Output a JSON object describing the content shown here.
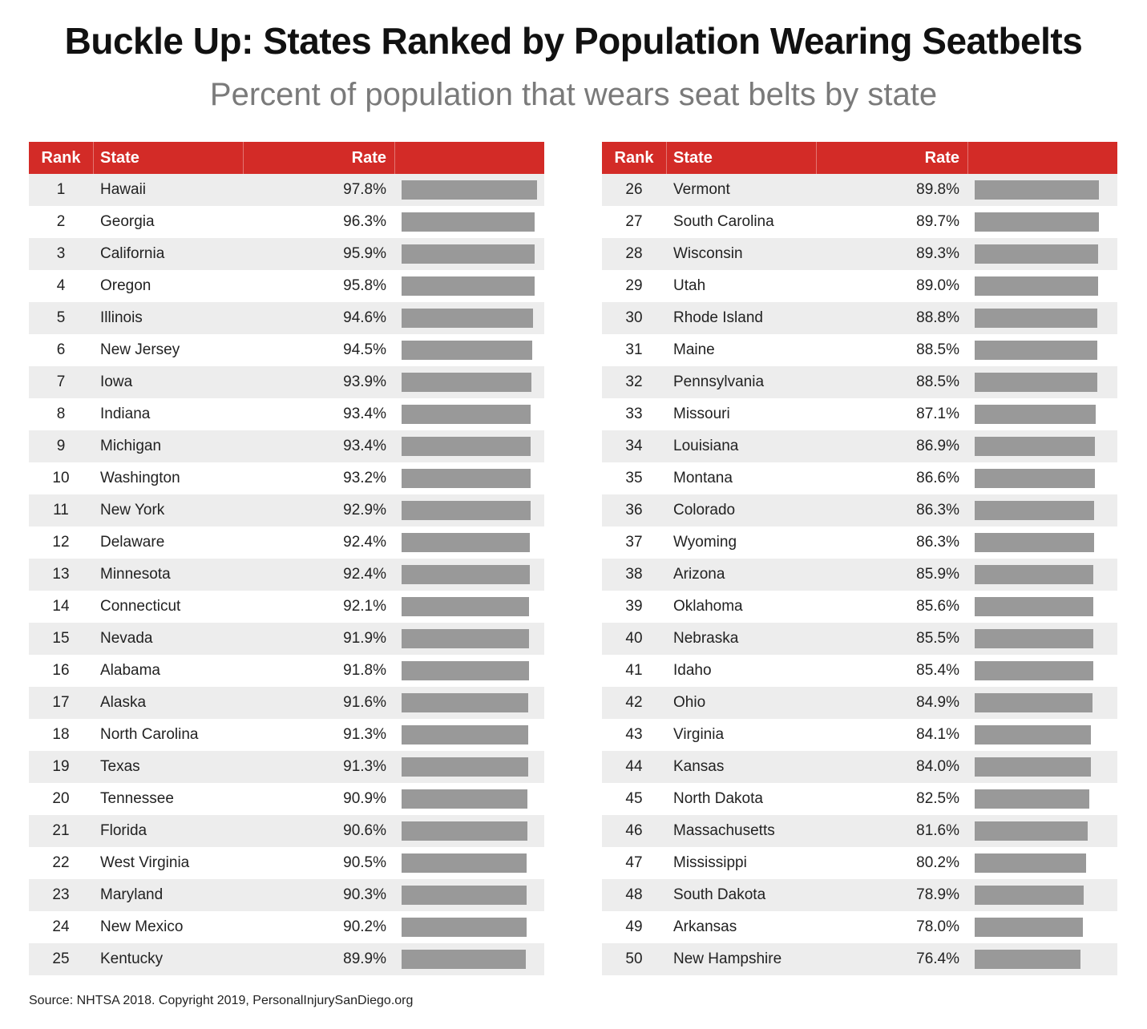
{
  "header": {
    "title": "Buckle Up: States Ranked by Population Wearing Seatbelts",
    "subtitle": "Percent of population that wears seat belts by state"
  },
  "table_header": {
    "rank": "Rank",
    "state": "State",
    "rate": "Rate"
  },
  "footer": {
    "source": "Source: NHTSA 2018. Copyright 2019, PersonalInjurySanDiego.org"
  },
  "colors": {
    "header_bg": "#d32b27",
    "bar": "#999999",
    "row_alt": "#ededed"
  },
  "chart_data": {
    "type": "bar",
    "title": "Buckle Up: States Ranked by Population Wearing Seatbelts",
    "subtitle": "Percent of population that wears seat belts by state",
    "orientation": "horizontal",
    "xlim": [
      0,
      97.8
    ],
    "rows": [
      {
        "rank": "1",
        "state": "Hawaii",
        "rate": "97.8%",
        "value": 97.8
      },
      {
        "rank": "2",
        "state": "Georgia",
        "rate": "96.3%",
        "value": 96.3
      },
      {
        "rank": "3",
        "state": "California",
        "rate": "95.9%",
        "value": 95.9
      },
      {
        "rank": "4",
        "state": "Oregon",
        "rate": "95.8%",
        "value": 95.8
      },
      {
        "rank": "5",
        "state": "Illinois",
        "rate": "94.6%",
        "value": 94.6
      },
      {
        "rank": "6",
        "state": "New Jersey",
        "rate": "94.5%",
        "value": 94.5
      },
      {
        "rank": "7",
        "state": "Iowa",
        "rate": "93.9%",
        "value": 93.9
      },
      {
        "rank": "8",
        "state": "Indiana",
        "rate": "93.4%",
        "value": 93.4
      },
      {
        "rank": "9",
        "state": "Michigan",
        "rate": "93.4%",
        "value": 93.4
      },
      {
        "rank": "10",
        "state": "Washington",
        "rate": "93.2%",
        "value": 93.2
      },
      {
        "rank": "11",
        "state": "New York",
        "rate": "92.9%",
        "value": 92.9
      },
      {
        "rank": "12",
        "state": "Delaware",
        "rate": "92.4%",
        "value": 92.4
      },
      {
        "rank": "13",
        "state": "Minnesota",
        "rate": "92.4%",
        "value": 92.4
      },
      {
        "rank": "14",
        "state": "Connecticut",
        "rate": "92.1%",
        "value": 92.1
      },
      {
        "rank": "15",
        "state": "Nevada",
        "rate": "91.9%",
        "value": 91.9
      },
      {
        "rank": "16",
        "state": "Alabama",
        "rate": "91.8%",
        "value": 91.8
      },
      {
        "rank": "17",
        "state": "Alaska",
        "rate": "91.6%",
        "value": 91.6
      },
      {
        "rank": "18",
        "state": "North Carolina",
        "rate": "91.3%",
        "value": 91.3
      },
      {
        "rank": "19",
        "state": "Texas",
        "rate": "91.3%",
        "value": 91.3
      },
      {
        "rank": "20",
        "state": "Tennessee",
        "rate": "90.9%",
        "value": 90.9
      },
      {
        "rank": "21",
        "state": "Florida",
        "rate": "90.6%",
        "value": 90.6
      },
      {
        "rank": "22",
        "state": "West Virginia",
        "rate": "90.5%",
        "value": 90.5
      },
      {
        "rank": "23",
        "state": "Maryland",
        "rate": "90.3%",
        "value": 90.3
      },
      {
        "rank": "24",
        "state": "New Mexico",
        "rate": "90.2%",
        "value": 90.2
      },
      {
        "rank": "25",
        "state": "Kentucky",
        "rate": "89.9%",
        "value": 89.9
      },
      {
        "rank": "26",
        "state": "Vermont",
        "rate": "89.8%",
        "value": 89.8
      },
      {
        "rank": "27",
        "state": "South Carolina",
        "rate": "89.7%",
        "value": 89.7
      },
      {
        "rank": "28",
        "state": "Wisconsin",
        "rate": "89.3%",
        "value": 89.3
      },
      {
        "rank": "29",
        "state": "Utah",
        "rate": "89.0%",
        "value": 89.0
      },
      {
        "rank": "30",
        "state": "Rhode Island",
        "rate": "88.8%",
        "value": 88.8
      },
      {
        "rank": "31",
        "state": "Maine",
        "rate": "88.5%",
        "value": 88.5
      },
      {
        "rank": "32",
        "state": "Pennsylvania",
        "rate": "88.5%",
        "value": 88.5
      },
      {
        "rank": "33",
        "state": "Missouri",
        "rate": "87.1%",
        "value": 87.1
      },
      {
        "rank": "34",
        "state": "Louisiana",
        "rate": "86.9%",
        "value": 86.9
      },
      {
        "rank": "35",
        "state": "Montana",
        "rate": "86.6%",
        "value": 86.6
      },
      {
        "rank": "36",
        "state": "Colorado",
        "rate": "86.3%",
        "value": 86.3
      },
      {
        "rank": "37",
        "state": "Wyoming",
        "rate": "86.3%",
        "value": 86.3
      },
      {
        "rank": "38",
        "state": "Arizona",
        "rate": "85.9%",
        "value": 85.9
      },
      {
        "rank": "39",
        "state": "Oklahoma",
        "rate": "85.6%",
        "value": 85.6
      },
      {
        "rank": "40",
        "state": "Nebraska",
        "rate": "85.5%",
        "value": 85.5
      },
      {
        "rank": "41",
        "state": "Idaho",
        "rate": "85.4%",
        "value": 85.4
      },
      {
        "rank": "42",
        "state": "Ohio",
        "rate": "84.9%",
        "value": 84.9
      },
      {
        "rank": "43",
        "state": "Virginia",
        "rate": "84.1%",
        "value": 84.1
      },
      {
        "rank": "44",
        "state": "Kansas",
        "rate": "84.0%",
        "value": 84.0
      },
      {
        "rank": "45",
        "state": "North Dakota",
        "rate": "82.5%",
        "value": 82.5
      },
      {
        "rank": "46",
        "state": "Massachusetts",
        "rate": "81.6%",
        "value": 81.6
      },
      {
        "rank": "47",
        "state": "Mississippi",
        "rate": "80.2%",
        "value": 80.2
      },
      {
        "rank": "48",
        "state": "South Dakota",
        "rate": "78.9%",
        "value": 78.9
      },
      {
        "rank": "49",
        "state": "Arkansas",
        "rate": "78.0%",
        "value": 78.0
      },
      {
        "rank": "50",
        "state": "New Hampshire",
        "rate": "76.4%",
        "value": 76.4
      }
    ]
  }
}
